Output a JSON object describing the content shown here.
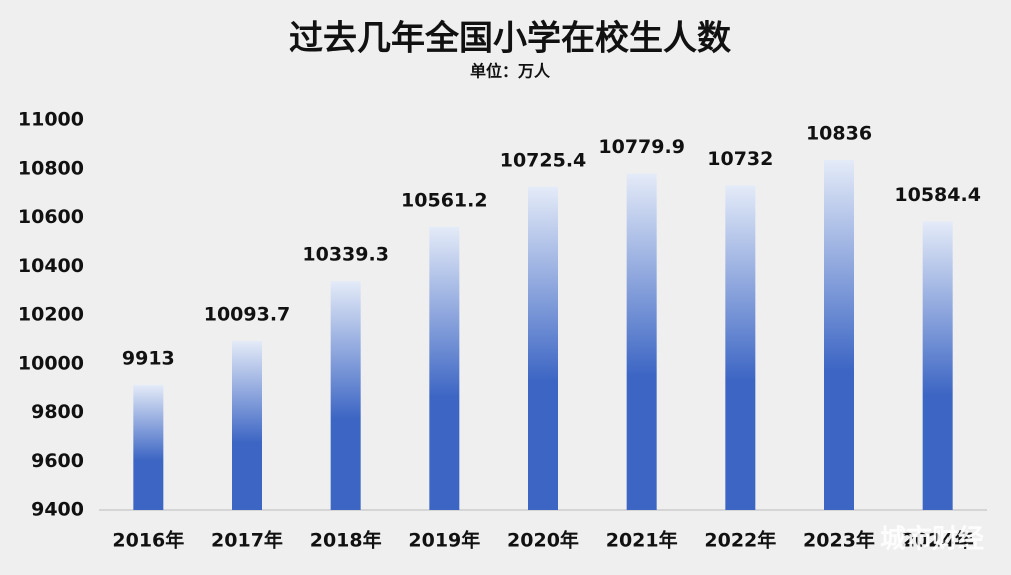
{
  "chart_data": {
    "type": "bar",
    "title": "过去几年全国小学在校生人数",
    "subtitle": "单位：万人",
    "categories": [
      "2016年",
      "2017年",
      "2018年",
      "2019年",
      "2020年",
      "2021年",
      "2022年",
      "2023年",
      "2024年"
    ],
    "values": [
      9913,
      10093.7,
      10339.3,
      10561.2,
      10725.4,
      10779.9,
      10732,
      10836,
      10584.4
    ],
    "color": "#3d66c4",
    "ylim": [
      9400,
      11000
    ],
    "yticks": [
      9400,
      9600,
      9800,
      10000,
      10200,
      10400,
      10600,
      10800,
      11000
    ],
    "grid": false
  },
  "watermark": "城市财经"
}
